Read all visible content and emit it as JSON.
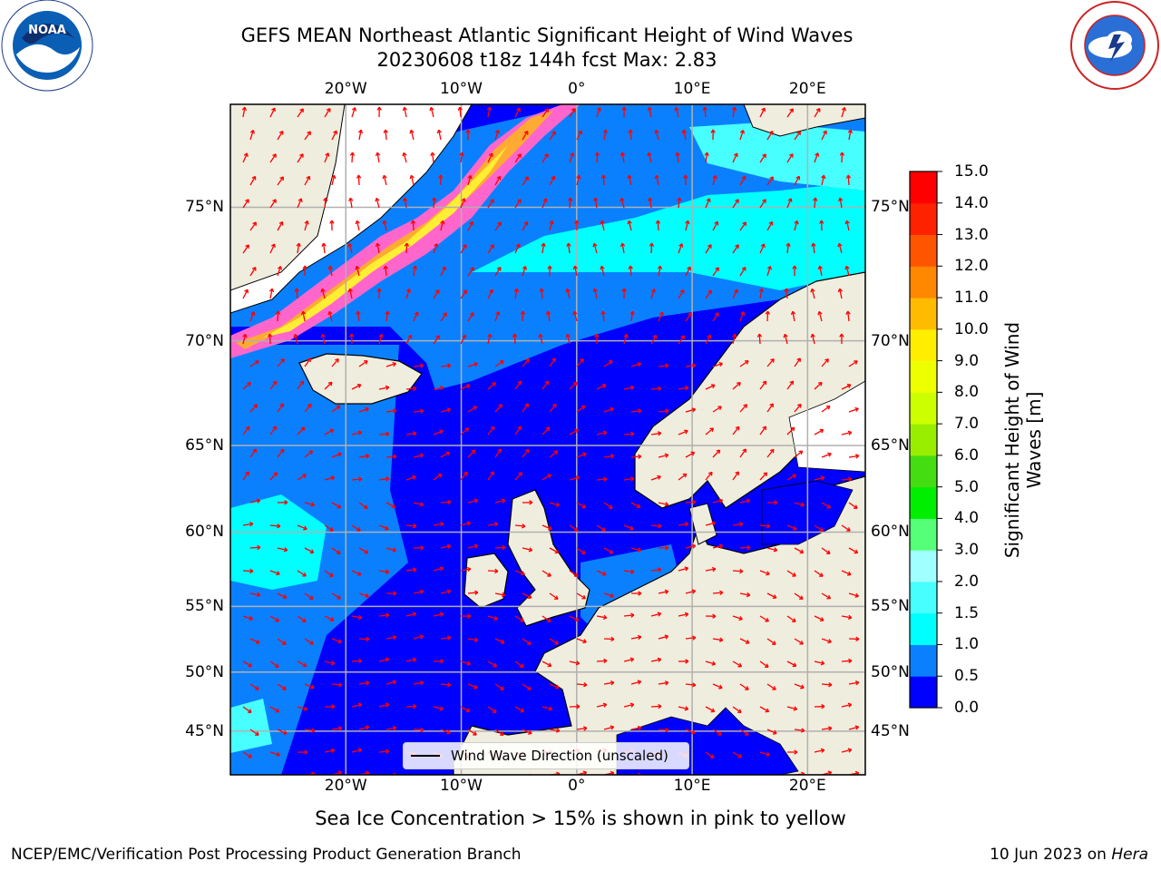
{
  "title": {
    "line1": "GEFS MEAN Northeast Atlantic Significant Height of Wind Waves",
    "line2": "20230608 t18z 144h fcst   Max: 2.83"
  },
  "map": {
    "lon_range": [
      -30,
      25
    ],
    "lat_range": [
      41,
      78
    ],
    "lon_ticks": [
      {
        "value": -20,
        "label": "20°W"
      },
      {
        "value": -10,
        "label": "10°W"
      },
      {
        "value": 0,
        "label": "0°"
      },
      {
        "value": 10,
        "label": "10°E"
      },
      {
        "value": 20,
        "label": "20°E"
      }
    ],
    "lat_ticks": [
      {
        "value": 75,
        "label": "75°N"
      },
      {
        "value": 70,
        "label": "70°N"
      },
      {
        "value": 65,
        "label": "65°N"
      },
      {
        "value": 60,
        "label": "60°N"
      },
      {
        "value": 55,
        "label": "55°N"
      },
      {
        "value": 50,
        "label": "50°N"
      },
      {
        "value": 45,
        "label": "45°N"
      }
    ],
    "gridlines": true,
    "colors": {
      "land": "#efedde",
      "ocean_low": "#0000ff",
      "ocean_mid": "#0a80ff",
      "ocean_high": "#00ffff",
      "ocean_pale": "#a0ffff",
      "ice_pink": "#ff66cc",
      "ice_orange": "#ffaa33",
      "ice_yellow": "#ffee33",
      "arrow": "#ff0000",
      "grid": "#b0b0b0"
    }
  },
  "legend": {
    "label": "Wind Wave Direction (unscaled)"
  },
  "colorbar": {
    "label_line1": "Significant Height of Wind",
    "label_line2": "Waves [m]",
    "ticks": [
      "0.0",
      "0.5",
      "1.0",
      "1.5",
      "2.0",
      "3.0",
      "4.0",
      "5.0",
      "6.0",
      "7.0",
      "8.0",
      "9.0",
      "10.0",
      "11.0",
      "12.0",
      "13.0",
      "14.0",
      "15.0"
    ],
    "colors": [
      "#0000ff",
      "#0a80ff",
      "#00ffff",
      "#48ffff",
      "#a0ffff",
      "#55ff77",
      "#00ee00",
      "#44dd11",
      "#99ee00",
      "#ccff00",
      "#eeff00",
      "#ffee00",
      "#ffbb00",
      "#ff8800",
      "#ff5500",
      "#ff2200",
      "#ff0000"
    ]
  },
  "footer": {
    "note": "Sea Ice Concentration > 15% is shown in pink to yellow",
    "credit_left": "NCEP/EMC/Verification Post Processing Product Generation Branch",
    "credit_right_prefix": "10 Jun 2023 on ",
    "credit_right_host": "Hera"
  },
  "logos": {
    "left": "noaa-logo",
    "right": "nws-logo"
  }
}
